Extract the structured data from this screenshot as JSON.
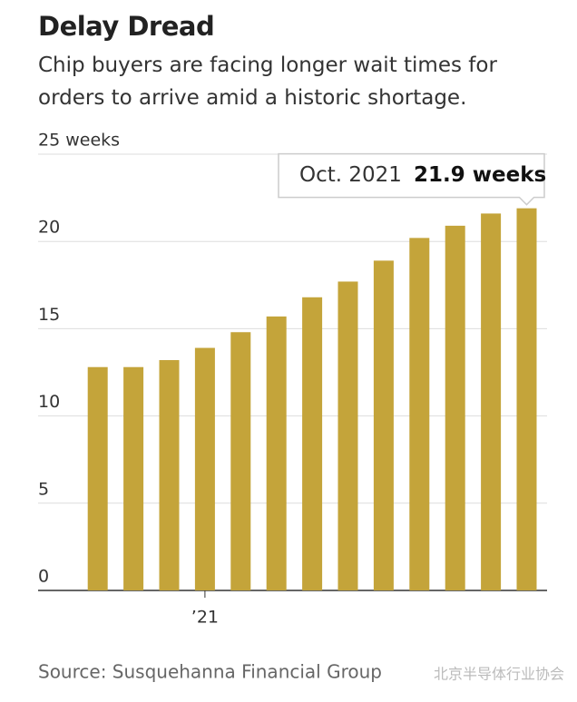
{
  "chart_data": {
    "type": "bar",
    "title": "Delay Dread",
    "subtitle": "Chip buyers are facing longer wait times for orders to arrive amid a historic shortage.",
    "categories": [
      null,
      null,
      null,
      "’21",
      null,
      null,
      null,
      null,
      null,
      null,
      null,
      null,
      null
    ],
    "values": [
      12.8,
      12.8,
      13.2,
      13.9,
      14.8,
      15.7,
      16.8,
      17.7,
      18.9,
      20.2,
      20.9,
      21.6,
      21.9
    ],
    "value_labels": [
      null,
      null,
      null,
      null,
      null,
      null,
      null,
      null,
      null,
      null,
      null,
      null,
      "21.9 weeks"
    ],
    "annotation": "Oct. 2021",
    "color": "#c4a43a",
    "ylim": [
      0,
      25
    ],
    "yticks": [
      0,
      5,
      10,
      15,
      20,
      {
        "value": 25,
        "label": "25 weeks"
      }
    ],
    "grid": true,
    "source": "Source: Susquehanna Financial Group",
    "watermark": "北京半导体行业协会"
  }
}
